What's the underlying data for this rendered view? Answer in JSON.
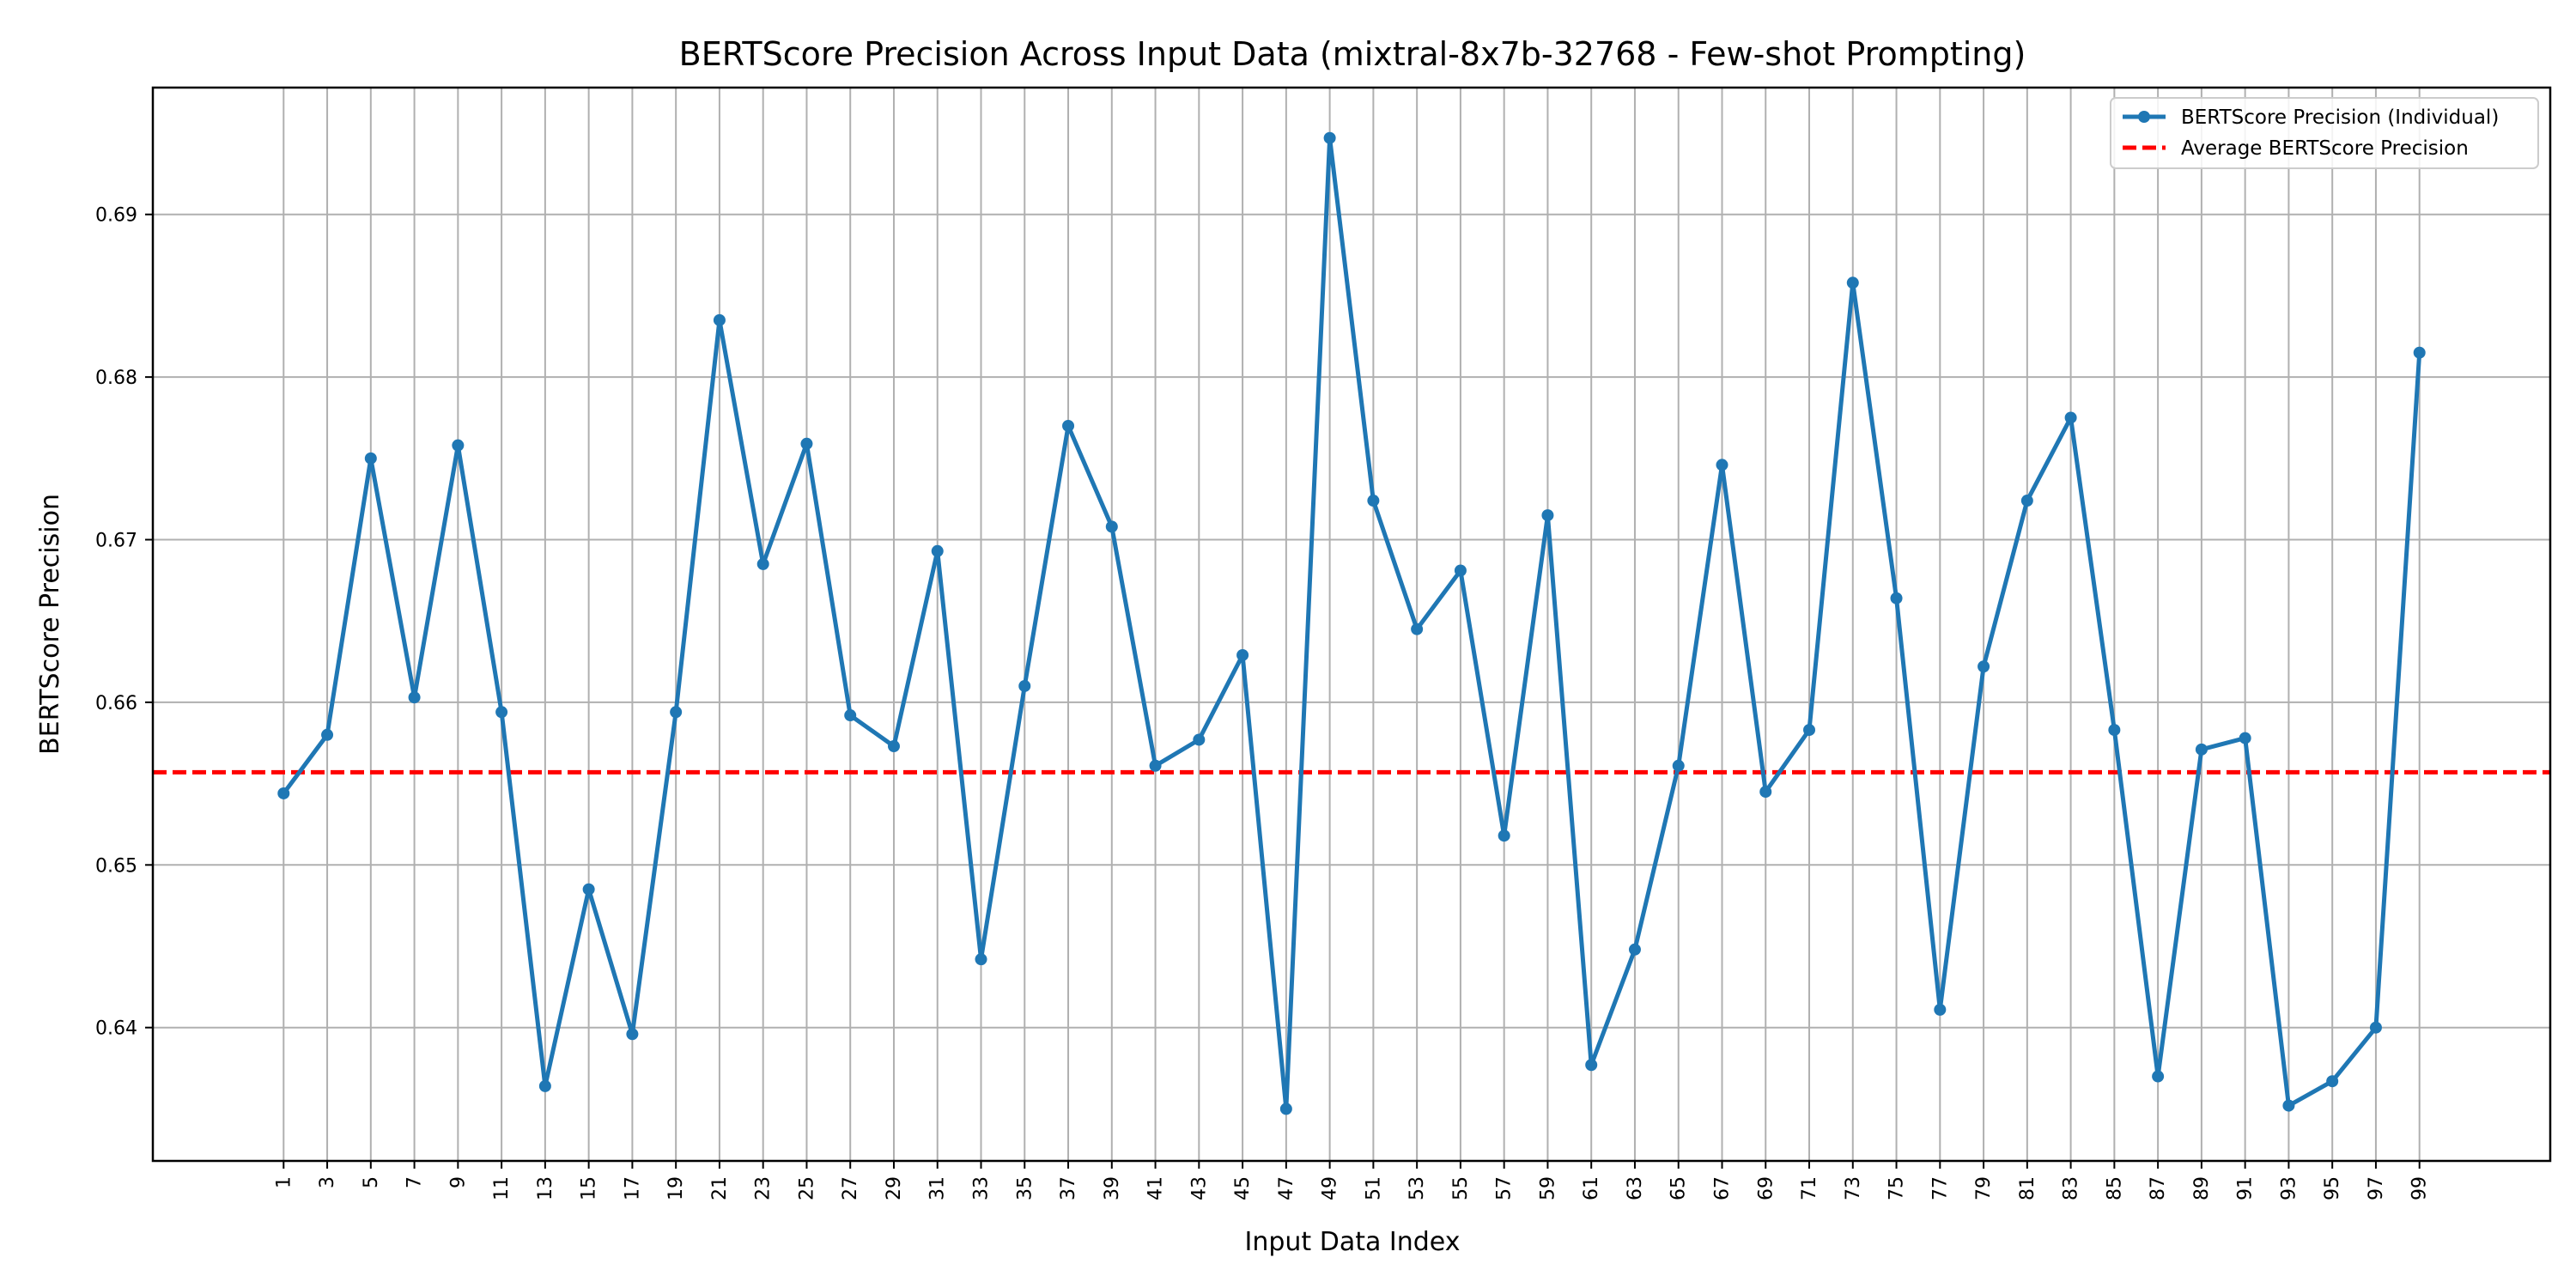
{
  "chart_data": {
    "type": "line",
    "title": "BERTScore Precision Across Input Data (mixtral-8x7b-32768 - Few-shot Prompting)",
    "xlabel": "Input Data Index",
    "ylabel": "BERTScore Precision",
    "xlim": [
      -5,
      105
    ],
    "ylim": [
      0.6318,
      0.6978
    ],
    "yticks": [
      0.64,
      0.65,
      0.66,
      0.67,
      0.68,
      0.69
    ],
    "ytick_labels": [
      "0.64",
      "0.65",
      "0.66",
      "0.67",
      "0.68",
      "0.69"
    ],
    "xticks": [
      1,
      3,
      5,
      7,
      9,
      11,
      13,
      15,
      17,
      19,
      21,
      23,
      25,
      27,
      29,
      31,
      33,
      35,
      37,
      39,
      41,
      43,
      45,
      47,
      49,
      51,
      53,
      55,
      57,
      59,
      61,
      63,
      65,
      67,
      69,
      71,
      73,
      75,
      77,
      79,
      81,
      83,
      85,
      87,
      89,
      91,
      93,
      95,
      97,
      99
    ],
    "grid": true,
    "legend_position": "upper right",
    "series": [
      {
        "name": "BERTScore Precision (Individual)",
        "color": "#1f77b4",
        "style": "solid-with-markers",
        "x": [
          1,
          3,
          5,
          7,
          9,
          11,
          13,
          15,
          17,
          19,
          21,
          23,
          25,
          27,
          29,
          31,
          33,
          35,
          37,
          39,
          41,
          43,
          45,
          47,
          49,
          51,
          53,
          55,
          57,
          59,
          61,
          63,
          65,
          67,
          69,
          71,
          73,
          75,
          77,
          79,
          81,
          83,
          85,
          87,
          89,
          91,
          93,
          95,
          97,
          99
        ],
        "values": [
          0.6544,
          0.658,
          0.675,
          0.6603,
          0.6758,
          0.6594,
          0.6364,
          0.6485,
          0.6396,
          0.6594,
          0.6835,
          0.6685,
          0.6759,
          0.6592,
          0.6573,
          0.6693,
          0.6442,
          0.661,
          0.677,
          0.6708,
          0.6561,
          0.6577,
          0.6629,
          0.635,
          0.6947,
          0.6724,
          0.6645,
          0.6681,
          0.6518,
          0.6715,
          0.6377,
          0.6448,
          0.6561,
          0.6746,
          0.6545,
          0.6583,
          0.6858,
          0.6664,
          0.6411,
          0.6622,
          0.6724,
          0.6775,
          0.6583,
          0.637,
          0.6571,
          0.6578,
          0.6352,
          0.6367,
          0.64,
          0.6815
        ]
      },
      {
        "name": "Average BERTScore Precision",
        "color": "#ff0000",
        "style": "dashed",
        "value": 0.6557
      }
    ]
  }
}
